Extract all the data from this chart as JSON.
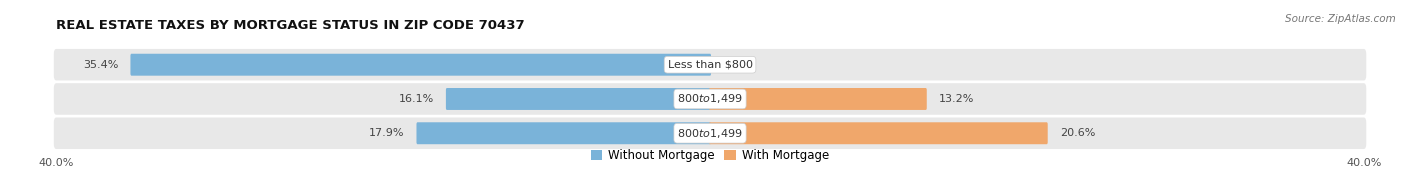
{
  "title": "REAL ESTATE TAXES BY MORTGAGE STATUS IN ZIP CODE 70437",
  "source": "Source: ZipAtlas.com",
  "rows": [
    {
      "label": "Less than $800",
      "without_mortgage": 35.4,
      "with_mortgage": 0.0
    },
    {
      "label": "$800 to $1,499",
      "without_mortgage": 16.1,
      "with_mortgage": 13.2
    },
    {
      "label": "$800 to $1,499",
      "without_mortgage": 17.9,
      "with_mortgage": 20.6
    }
  ],
  "x_max": 40.0,
  "color_without": "#7ab3d9",
  "color_with": "#f0a76b",
  "color_without_light": "#b8d4eb",
  "bar_bg": "#e8e8e8",
  "bar_height": 0.62,
  "label_fontsize": 8.0,
  "title_fontsize": 9.5,
  "legend_fontsize": 8.5,
  "source_fontsize": 7.5
}
